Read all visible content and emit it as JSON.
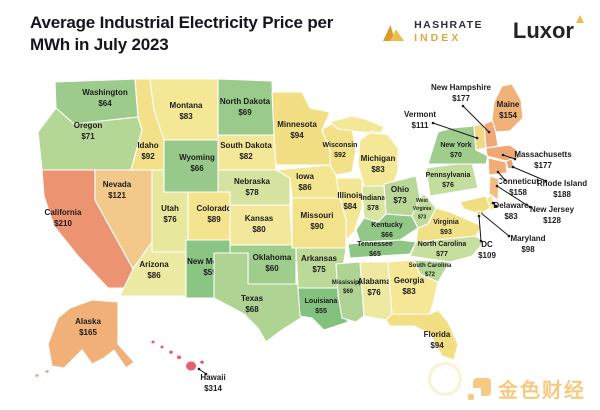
{
  "header": {
    "title_line1": "Average Industrial Electricity Price per",
    "title_line2": "MWh in July 2023",
    "hashrate_line1": "HASHRATE",
    "hashrate_line2": "INDEX",
    "luxor": "Luxor"
  },
  "watermark": {
    "brand": "金色财经"
  },
  "colors": {
    "logo_gold_dark": "#d9992f",
    "logo_gold_light": "#f0bc4d",
    "title_text": "#15151f",
    "watermark_orange": "#f2a01e",
    "state_border": "#ffffff",
    "label_text": "#1c1c1c",
    "callout_line": "#17171f",
    "scale_low_green": "#82c17e",
    "scale_mid_yellow": "#f3e28c",
    "scale_high_orange": "#efa873",
    "scale_max_red": "#e55f6e"
  },
  "chart_data": {
    "type": "heatmap",
    "subtype": "us-state-choropleth-map",
    "title": "Average Industrial Electricity Price per MWh in July 2023",
    "unit": "USD per MWh",
    "value_range": [
      55,
      314
    ],
    "legend": "none",
    "color_scale_hint": "green = cheap (~$55), yellow = mid (~$90), orange = high (~$160), red = max ($314)",
    "states": [
      {
        "id": "WA",
        "name": "Washington",
        "value": 64,
        "label": "$64",
        "color": "#9ccb8b"
      },
      {
        "id": "OR",
        "name": "Oregon",
        "value": 71,
        "label": "$71",
        "color": "#b5d795"
      },
      {
        "id": "CA",
        "name": "California",
        "value": 210,
        "label": "$210",
        "color": "#ec9472"
      },
      {
        "id": "NV",
        "name": "Nevada",
        "value": 121,
        "label": "$121",
        "color": "#f3c88b"
      },
      {
        "id": "ID",
        "name": "Idaho",
        "value": 92,
        "label": "$92",
        "color": "#f3e189"
      },
      {
        "id": "MT",
        "name": "Montana",
        "value": 83,
        "label": "$83",
        "color": "#f4e795"
      },
      {
        "id": "WY",
        "name": "Wyoming",
        "value": 66,
        "label": "$66",
        "color": "#97c98a"
      },
      {
        "id": "UT",
        "name": "Utah",
        "value": 76,
        "label": "$76",
        "color": "#e7e79e"
      },
      {
        "id": "CO",
        "name": "Colorado",
        "value": 89,
        "label": "$89",
        "color": "#f4e48f"
      },
      {
        "id": "AZ",
        "name": "Arizona",
        "value": 86,
        "label": "$86",
        "color": "#ece9a2"
      },
      {
        "id": "NM",
        "name": "New Mexico",
        "value": 59,
        "label": "$59",
        "color": "#8bc584"
      },
      {
        "id": "ND",
        "name": "North Dakota",
        "value": 69,
        "label": "$69",
        "color": "#9acb8b"
      },
      {
        "id": "SD",
        "name": "South Dakota",
        "value": 82,
        "label": "$82",
        "color": "#f4e898"
      },
      {
        "id": "NE",
        "name": "Nebraska",
        "value": 78,
        "label": "$78",
        "color": "#d6e3a0"
      },
      {
        "id": "KS",
        "name": "Kansas",
        "value": 80,
        "label": "$80",
        "color": "#f3e79c"
      },
      {
        "id": "OK",
        "name": "Oklahoma",
        "value": 60,
        "label": "$60",
        "color": "#9fcd8c"
      },
      {
        "id": "TX",
        "name": "Texas",
        "value": 68,
        "label": "$68",
        "color": "#aed393"
      },
      {
        "id": "MN",
        "name": "Minnesota",
        "value": 94,
        "label": "$94",
        "color": "#f2df84"
      },
      {
        "id": "IA",
        "name": "Iowa",
        "value": 86,
        "label": "$86",
        "color": "#f4e591"
      },
      {
        "id": "MO",
        "name": "Missouri",
        "value": 90,
        "label": "$90",
        "color": "#f3e28c"
      },
      {
        "id": "AR",
        "name": "Arkansas",
        "value": 75,
        "label": "$75",
        "color": "#bcd998"
      },
      {
        "id": "LA",
        "name": "Louisiana",
        "value": 55,
        "label": "$55",
        "color": "#82c17e"
      },
      {
        "id": "WI",
        "name": "Wisconsin",
        "value": 92,
        "label": "$92",
        "color": "#f3e189"
      },
      {
        "id": "IL",
        "name": "Illinois",
        "value": 84,
        "label": "$84",
        "color": "#f4e695"
      },
      {
        "id": "MI",
        "name": "Michigan",
        "value": 83,
        "label": "$83",
        "color": "#f4e795"
      },
      {
        "id": "IN",
        "name": "Indiana",
        "value": 78,
        "label": "$78",
        "color": "#d8e5a1"
      },
      {
        "id": "OH",
        "name": "Ohio",
        "value": 73,
        "label": "$73",
        "color": "#b9d897"
      },
      {
        "id": "KY",
        "name": "Kentucky",
        "value": 66,
        "label": "$66",
        "color": "#92c887"
      },
      {
        "id": "TN",
        "name": "Tennessee",
        "value": 65,
        "label": "$65",
        "color": "#8fc685"
      },
      {
        "id": "MS",
        "name": "Mississippi",
        "value": 69,
        "label": "$69",
        "color": "#aed393"
      },
      {
        "id": "AL",
        "name": "Alabama",
        "value": 76,
        "label": "$76",
        "color": "#ede9a0"
      },
      {
        "id": "GA",
        "name": "Georgia",
        "value": 83,
        "label": "$83",
        "color": "#f5e795"
      },
      {
        "id": "FL",
        "name": "Florida",
        "value": 94,
        "label": "$94",
        "color": "#f2df84"
      },
      {
        "id": "WV",
        "name": "West Virginia",
        "value": 73,
        "label": "$73",
        "color": "#c0dc9b"
      },
      {
        "id": "VA",
        "name": "Virginia",
        "value": 93,
        "label": "$93",
        "color": "#f2e086"
      },
      {
        "id": "NC",
        "name": "North Carolina",
        "value": 77,
        "label": "$77",
        "color": "#c6de9e"
      },
      {
        "id": "SC",
        "name": "South Carolina",
        "value": 72,
        "label": "$72",
        "color": "#b6d897"
      },
      {
        "id": "PA",
        "name": "Pennsylvania",
        "value": 76,
        "label": "$76",
        "color": "#c3dd9d"
      },
      {
        "id": "NY",
        "name": "New York",
        "value": 70,
        "label": "$70",
        "color": "#9ecd8d"
      },
      {
        "id": "VT",
        "name": "Vermont",
        "value": 111,
        "label": "$111",
        "color": "#f0d887"
      },
      {
        "id": "NH",
        "name": "New Hampshire",
        "value": 177,
        "label": "$177",
        "color": "#f0a976"
      },
      {
        "id": "ME",
        "name": "Maine",
        "value": 154,
        "label": "$154",
        "color": "#f1b277"
      },
      {
        "id": "MA",
        "name": "Massachusetts",
        "value": 177,
        "label": "$177",
        "color": "#efa873"
      },
      {
        "id": "CT",
        "name": "Conneticut",
        "value": 158,
        "label": "$158",
        "color": "#f0ae74"
      },
      {
        "id": "RI",
        "name": "Rhode Island",
        "value": 188,
        "label": "$188",
        "color": "#eda06e"
      },
      {
        "id": "NJ",
        "name": "New Jersey",
        "value": 128,
        "label": "$128",
        "color": "#f3bd80"
      },
      {
        "id": "DE",
        "name": "Delaware",
        "value": 83,
        "label": "$83",
        "color": "#f4e79a"
      },
      {
        "id": "MD",
        "name": "Maryland",
        "value": 98,
        "label": "$98",
        "color": "#f1dc7f"
      },
      {
        "id": "DC",
        "name": "DC",
        "value": 109,
        "label": "$109",
        "color": "#f0cf82"
      },
      {
        "id": "AK",
        "name": "Alaska",
        "value": 165,
        "label": "$165",
        "color": "#f0b078"
      },
      {
        "id": "HI",
        "name": "Hawaii",
        "value": 314,
        "label": "$314",
        "color": "#e55f6e"
      }
    ]
  }
}
